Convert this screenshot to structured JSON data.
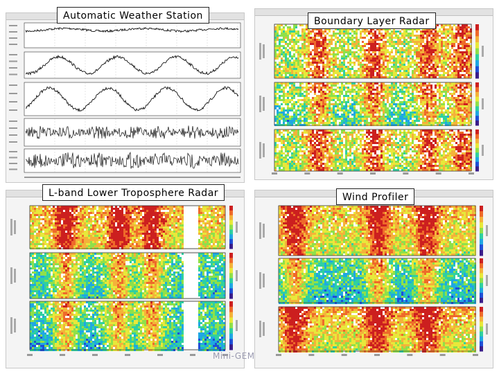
{
  "labels": {
    "aws": "Automatic Weather Station",
    "blr": "Boundary Layer Radar",
    "lband": "L-band Lower Troposphere Radar",
    "wind": "Wind Profiler"
  },
  "footer": "Mini-GEM",
  "colors": {
    "bg": "#ffffff",
    "panel": "#f4f4f4",
    "colormap": [
      "#3a1d8a",
      "#1f4fd6",
      "#1fa7e3",
      "#2fd0a0",
      "#8fe04a",
      "#e8e83a",
      "#f4b23a",
      "#ee6a2a",
      "#cc1f1f"
    ]
  }
}
